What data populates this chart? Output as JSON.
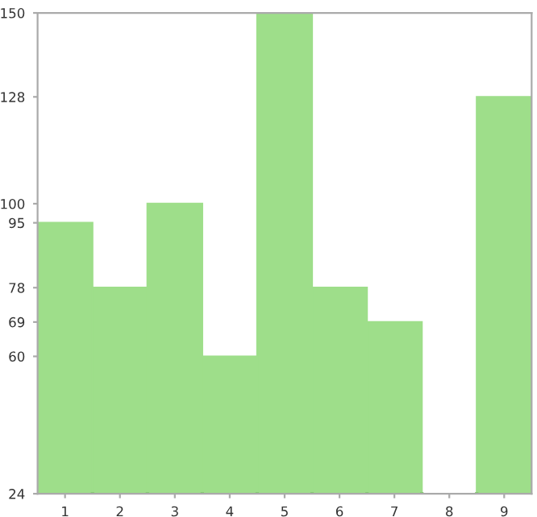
{
  "chart_data": {
    "type": "bar",
    "categories": [
      "1",
      "2",
      "3",
      "4",
      "5",
      "6",
      "7",
      "8",
      "9"
    ],
    "values": [
      95,
      78,
      100,
      60,
      150,
      78,
      69,
      24,
      128
    ],
    "color": "#9ede8a",
    "ylim": [
      24,
      150
    ],
    "yticks": [
      24,
      60,
      69,
      78,
      95,
      100,
      128,
      150
    ],
    "grid": false
  }
}
